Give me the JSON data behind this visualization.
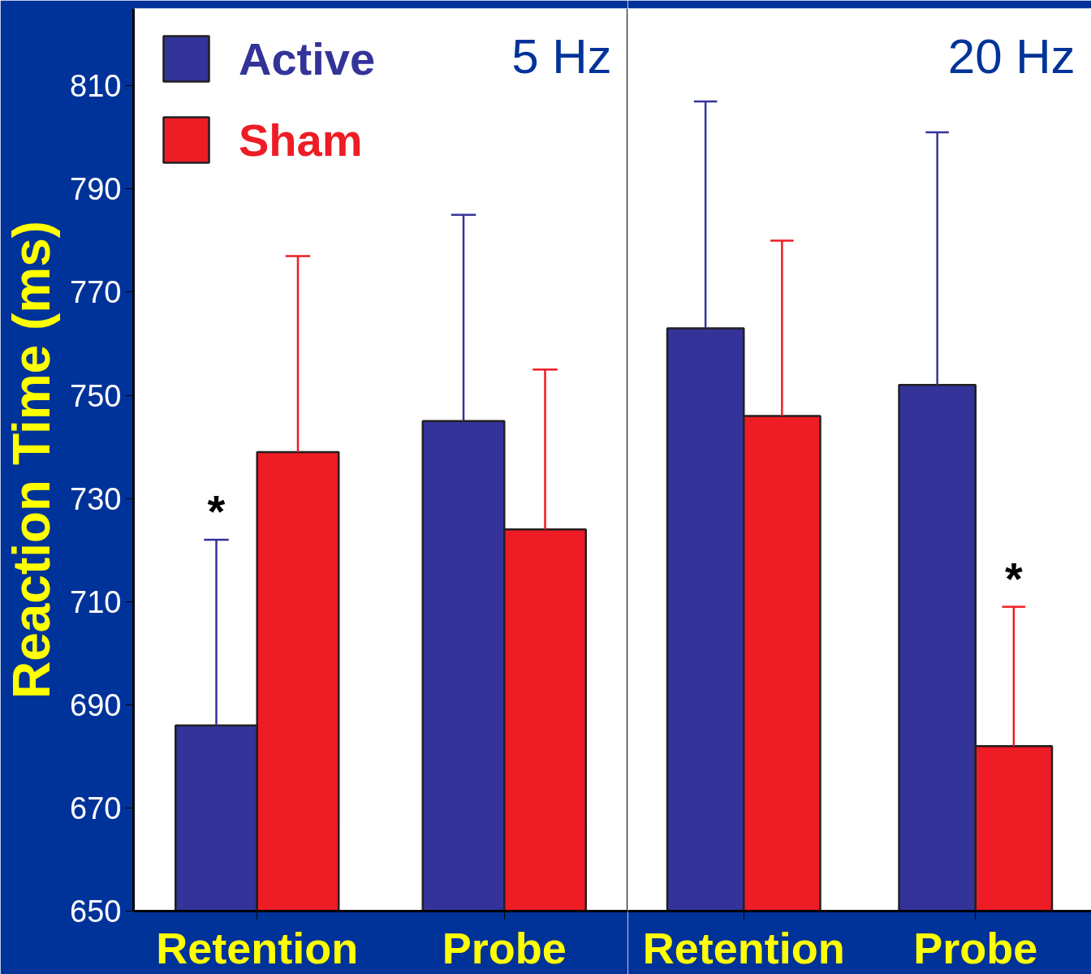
{
  "chart_data": [
    {
      "type": "bar",
      "ylabel": "Reaction Time (ms)",
      "categories": [
        "Retention",
        "Probe"
      ],
      "ylim": [
        650,
        825
      ],
      "yticks": [
        650,
        670,
        690,
        710,
        730,
        750,
        770,
        790,
        810
      ],
      "grid": false,
      "legend": "top left",
      "series": [
        {
          "name": "Active",
          "color": "#333399",
          "values": [
            686,
            745
          ],
          "errors": [
            [
              686,
              722
            ],
            [
              745,
              785
            ]
          ]
        },
        {
          "name": "Sham",
          "color": "#ee1c25",
          "values": [
            739,
            724
          ],
          "errors": [
            [
              739,
              777
            ],
            [
              724,
              755
            ]
          ]
        }
      ],
      "annotations": [
        "5 Hz",
        {
          "text": "*",
          "x": "Retention",
          "y": 722
        }
      ]
    },
    {
      "type": "bar",
      "categories": [
        "Retention",
        "Probe"
      ],
      "ylim": [
        650,
        825
      ],
      "yticks": [
        650,
        670,
        690,
        710,
        730,
        750,
        770,
        790,
        810
      ],
      "grid": false,
      "tick_labels": "x",
      "series": [
        {
          "color": "#333399",
          "values": [
            763,
            752
          ],
          "errors": [
            [
              763,
              807
            ],
            [
              752,
              801
            ]
          ]
        },
        {
          "color": "#ee1c25",
          "values": [
            746,
            682
          ],
          "errors": [
            [
              746,
              780
            ],
            [
              682,
              709
            ]
          ]
        }
      ],
      "annotations": [
        "20 Hz",
        {
          "text": "*",
          "x": "Probe",
          "y": 709
        }
      ]
    }
  ]
}
